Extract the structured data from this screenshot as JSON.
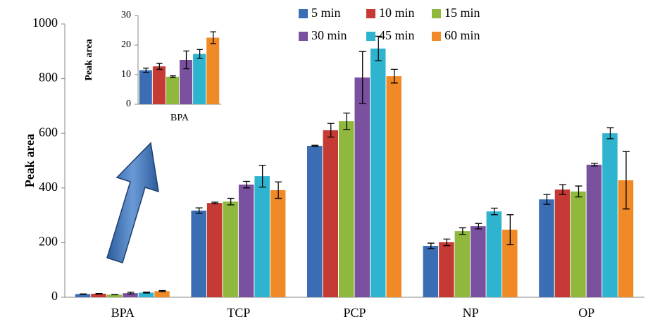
{
  "chart_data": [
    {
      "type": "bar",
      "ylabel": "Peak area",
      "categories": [
        "BPA",
        "TCP",
        "PCP",
        "NP",
        "OP"
      ],
      "ylim": [
        0,
        1000
      ],
      "yticks": [
        0,
        200,
        400,
        600,
        800,
        1000
      ],
      "legend": "top-right",
      "series": [
        {
          "name": "5 min",
          "color": "#3b6db4",
          "values": [
            11.5,
            317,
            554,
            188,
            358
          ],
          "errors": [
            0.7,
            10,
            2,
            10,
            18
          ]
        },
        {
          "name": "10 min",
          "color": "#c63a35",
          "values": [
            12.8,
            345,
            611,
            201,
            394
          ],
          "errors": [
            1.0,
            3,
            25,
            12,
            18
          ]
        },
        {
          "name": "15 min",
          "color": "#8fb83c",
          "values": [
            9.3,
            350,
            644,
            242,
            387
          ],
          "errors": [
            0.3,
            12,
            30,
            12,
            20
          ]
        },
        {
          "name": "30 min",
          "color": "#7a519f",
          "values": [
            15,
            412,
            804,
            260,
            485
          ],
          "errors": [
            3,
            12,
            95,
            10,
            5
          ]
        },
        {
          "name": "45 min",
          "color": "#2fb4d0",
          "values": [
            17,
            443,
            910,
            314,
            600
          ],
          "errors": [
            1.5,
            40,
            45,
            12,
            20
          ]
        },
        {
          "name": "60 min",
          "color": "#f08a26",
          "values": [
            22.5,
            392,
            809,
            247,
            428
          ],
          "errors": [
            2,
            30,
            25,
            55,
            105
          ]
        }
      ]
    },
    {
      "type": "bar",
      "ylabel": "Peak area",
      "categories": [
        "BPA"
      ],
      "ylim": [
        0,
        30
      ],
      "yticks": [
        0,
        10,
        20,
        30
      ],
      "series": [
        {
          "color": "#3b6db4",
          "values": [
            11.5
          ],
          "errors": [
            0.7
          ]
        },
        {
          "color": "#c63a35",
          "values": [
            12.8
          ],
          "errors": [
            1.0
          ]
        },
        {
          "color": "#8fb83c",
          "values": [
            9.3
          ],
          "errors": [
            0.3
          ]
        },
        {
          "color": "#7a519f",
          "values": [
            15
          ],
          "errors": [
            3
          ]
        },
        {
          "color": "#2fb4d0",
          "values": [
            17
          ],
          "errors": [
            1.5
          ]
        },
        {
          "color": "#f08a26",
          "values": [
            22.5
          ],
          "errors": [
            2
          ]
        }
      ]
    }
  ]
}
